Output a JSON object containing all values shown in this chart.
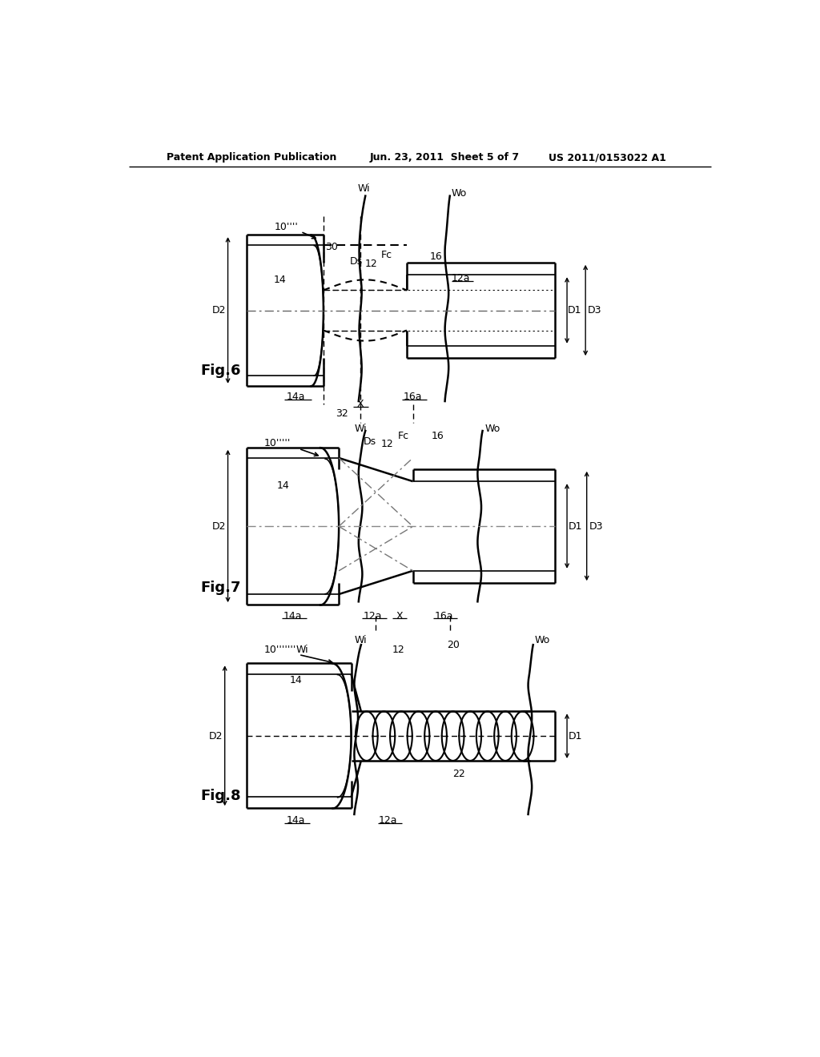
{
  "page_header_left": "Patent Application Publication",
  "page_header_center": "Jun. 23, 2011  Sheet 5 of 7",
  "page_header_right": "US 2011/0153022 A1",
  "background_color": "#ffffff",
  "line_color": "#000000"
}
